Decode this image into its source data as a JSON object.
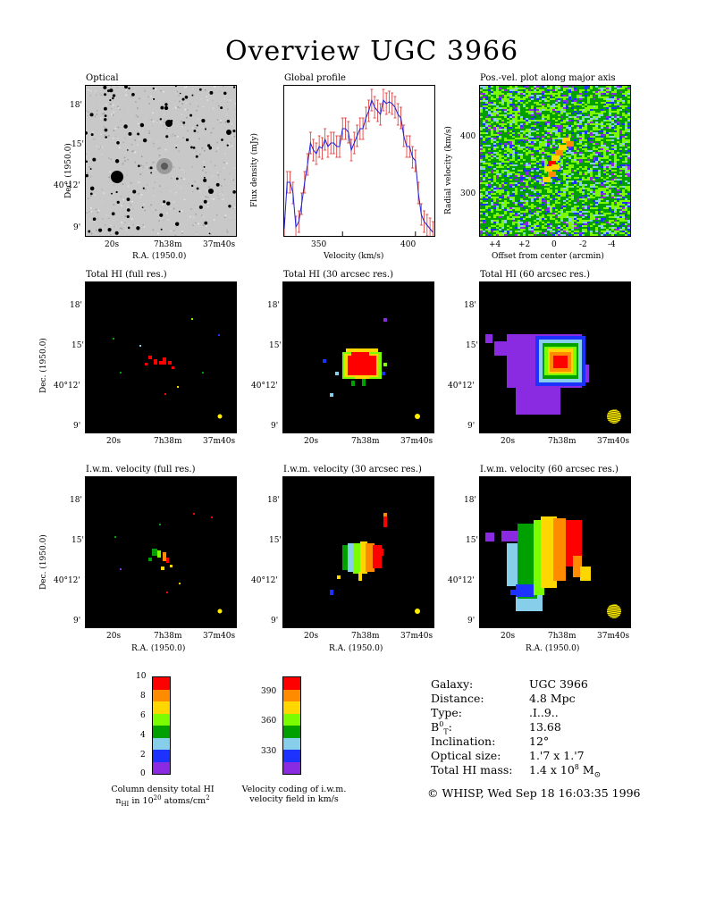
{
  "title": "Overview UGC 3966",
  "panels": {
    "optical": "Optical",
    "global_profile": "Global profile",
    "pv": "Pos.-vel. plot along major axis",
    "hi_full": "Total HI (full res.)",
    "hi_30": "Total HI (30 arcsec res.)",
    "hi_60": "Total HI (60 arcsec res.)",
    "vel_full": "I.w.m. velocity (full res.)",
    "vel_30": "I.w.m. velocity (30 arcsec res.)",
    "vel_60": "I.w.m. velocity (60 arcsec res.)"
  },
  "axes": {
    "dec_label": "Dec. (1950.0)",
    "ra_label": "R.A. (1950.0)",
    "dec_ticks": [
      "18'",
      "15'",
      "40°12'",
      "9'"
    ],
    "ra_ticks": [
      "20s",
      "7h38m",
      "37m40s"
    ],
    "flux_label": "Flux density (mJy)",
    "velocity_label": "Velocity (km/s)",
    "radial_velocity_label": "Radial velocity (km/s)",
    "offset_label": "Offset from center (arcmin)",
    "velocity_ticks": [
      "350",
      "400"
    ],
    "radial_velocity_ticks": [
      "400",
      "300"
    ],
    "offset_ticks": [
      "+4",
      "+2",
      "0",
      "-2",
      "-4"
    ]
  },
  "chart_data": {
    "type": "line",
    "title": "Global profile",
    "xlabel": "Velocity (km/s)",
    "ylabel": "Flux density (mJy)",
    "xlim": [
      310,
      413
    ],
    "ylim": [
      0,
      420
    ],
    "x": [
      310,
      312,
      314,
      316,
      318,
      320,
      322,
      324,
      326,
      328,
      330,
      332,
      334,
      336,
      338,
      340,
      342,
      344,
      346,
      348,
      350,
      352,
      354,
      356,
      358,
      360,
      362,
      364,
      366,
      368,
      370,
      372,
      374,
      376,
      378,
      380,
      382,
      384,
      386,
      388,
      390,
      392,
      394,
      396,
      398,
      400,
      402,
      404,
      406,
      408,
      410,
      412
    ],
    "values": [
      20,
      150,
      150,
      120,
      25,
      40,
      90,
      150,
      200,
      260,
      240,
      230,
      250,
      245,
      270,
      250,
      260,
      260,
      250,
      250,
      300,
      300,
      290,
      240,
      260,
      280,
      300,
      300,
      330,
      350,
      380,
      360,
      350,
      340,
      380,
      370,
      375,
      370,
      360,
      340,
      330,
      280,
      250,
      250,
      220,
      210,
      120,
      60,
      40,
      30,
      20,
      10
    ],
    "error_bars": true,
    "line_color": "#2020d0",
    "error_color": "#e03030"
  },
  "colorbar_density": {
    "ticks": [
      "10",
      "8",
      "6",
      "4",
      "2",
      "0"
    ],
    "caption_line1": "Column density total HI",
    "caption_line2_pre": "n",
    "caption_line2_sub": "HI",
    "caption_line2_mid": " in 10",
    "caption_line2_sup": "20",
    "caption_line2_post": " atoms/cm",
    "caption_line2_sup2": "2",
    "colors": [
      "#ff0000",
      "#ff8c00",
      "#ffd700",
      "#7cfc00",
      "#00a000",
      "#87ceeb",
      "#1e32ff",
      "#8a2be2"
    ]
  },
  "colorbar_velocity": {
    "ticks": [
      "390",
      "360",
      "330"
    ],
    "caption_line1": "Velocity coding of i.w.m.",
    "caption_line2": "velocity field in km/s",
    "colors": [
      "#ff0000",
      "#ff8c00",
      "#ffd700",
      "#7cfc00",
      "#00a000",
      "#87ceeb",
      "#1e32ff",
      "#8a2be2"
    ]
  },
  "info": {
    "galaxy_label": "Galaxy:",
    "galaxy": "UGC 3966",
    "distance_label": "Distance:",
    "distance": "4.8 Mpc",
    "type_label": "Type:",
    "type": ".I..9..",
    "bt_label_b": "B",
    "bt_label_sup": "0",
    "bt_label_sub": "T",
    "bt_label_colon": ":",
    "bt": "13.68",
    "inclination_label": "Inclination:",
    "inclination": "12°",
    "optical_size_label": "Optical size:",
    "optical_size": "1.'7 x 1.'7",
    "hi_mass_label": "Total HI mass:",
    "hi_mass_pre": "1.4 x 10",
    "hi_mass_sup": "8",
    "hi_mass_post": " M",
    "hi_mass_sub": "⊙",
    "footer": "© WHISP, Wed Sep 18 16:03:35 1996"
  }
}
